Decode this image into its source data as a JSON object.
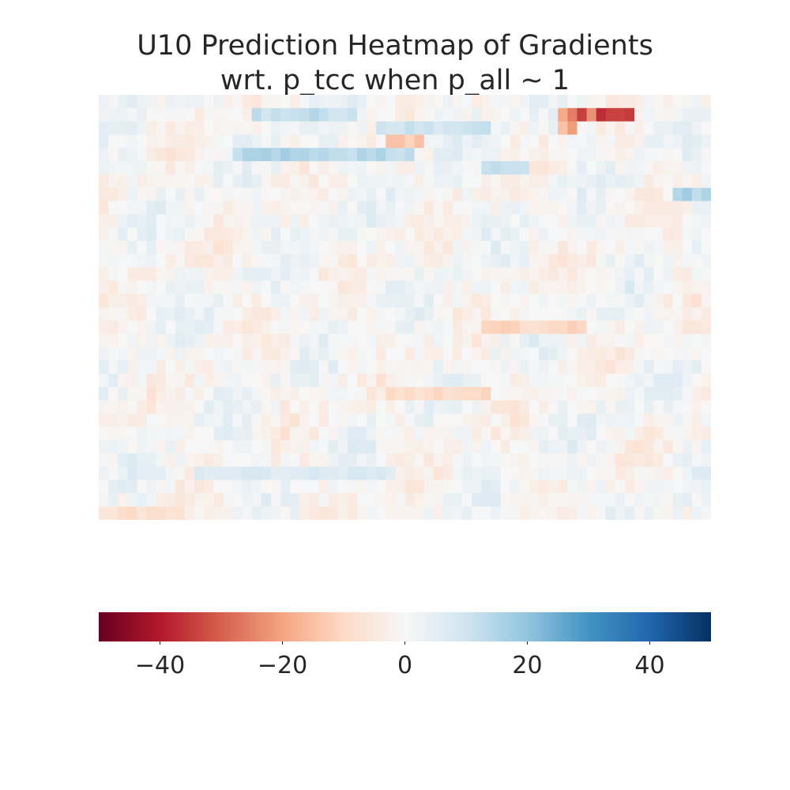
{
  "chart_data": {
    "type": "heatmap",
    "title_lines": [
      "U10 Prediction Heatmap of Gradients",
      "wrt. p_tcc when p_all ~ 1"
    ],
    "rows": 32,
    "cols": 64,
    "colormap": "RdBu (diverging, red = negative, blue = positive)",
    "vmin": -50,
    "vmax": 50,
    "colorbar": {
      "orientation": "horizontal",
      "position": "below",
      "ticks": [
        -40,
        -20,
        0,
        20,
        40
      ],
      "tick_labels": [
        "−40",
        "−20",
        "0",
        "20",
        "40"
      ]
    },
    "axes_visible": false,
    "hot_spots": [
      {
        "row": 1,
        "col_start": 50,
        "col_end": 55,
        "value": -30
      },
      {
        "row": 4,
        "col_start": 14,
        "col_end": 32,
        "value": 14
      },
      {
        "row": 1,
        "col_start": 16,
        "col_end": 26,
        "value": 12
      },
      {
        "row": 2,
        "col_start": 29,
        "col_end": 40,
        "value": 10
      },
      {
        "row": 3,
        "col_start": 30,
        "col_end": 33,
        "value": -14
      },
      {
        "row": 7,
        "col_start": 60,
        "col_end": 63,
        "value": 15
      },
      {
        "row": 5,
        "col_start": 40,
        "col_end": 44,
        "value": 10
      },
      {
        "row": 22,
        "col_start": 30,
        "col_end": 40,
        "value": -9
      },
      {
        "row": 17,
        "col_start": 40,
        "col_end": 50,
        "value": -10
      },
      {
        "row": 28,
        "col_start": 10,
        "col_end": 30,
        "value": 7
      },
      {
        "row": 31,
        "col_start": 0,
        "col_end": 8,
        "value": -8
      },
      {
        "row": 1,
        "col_start": 48,
        "col_end": 49,
        "value": -22
      },
      {
        "row": 2,
        "col_start": 48,
        "col_end": 49,
        "value": -18
      }
    ]
  }
}
